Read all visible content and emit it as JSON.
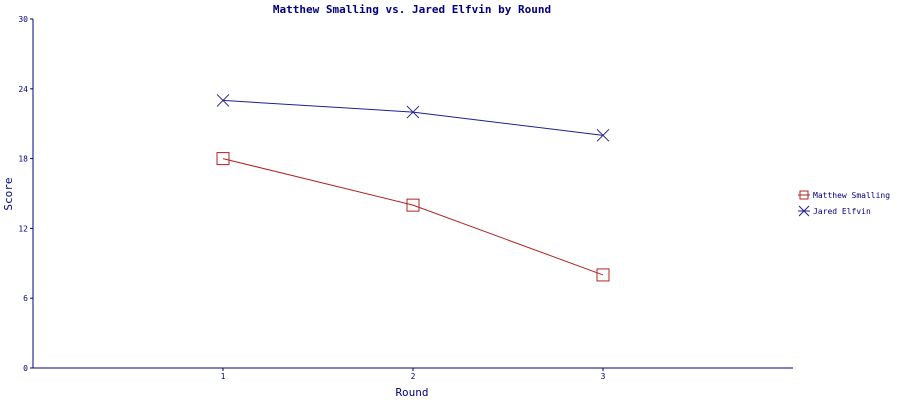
{
  "chart_data": {
    "type": "line",
    "title": "Matthew Smalling vs. Jared Elfvin by Round",
    "xlabel": "Round",
    "ylabel": "Score",
    "categories": [
      "1",
      "2",
      "3"
    ],
    "ylim": [
      0,
      30
    ],
    "yticks": [
      "0",
      "6",
      "12",
      "18",
      "24",
      "30"
    ],
    "grid": false,
    "legend_position": "right",
    "series": [
      {
        "name": "Matthew Smalling",
        "values": [
          18,
          14,
          8
        ],
        "color": "#b22222",
        "marker": "square"
      },
      {
        "name": "Jared Elfvin",
        "values": [
          23,
          22,
          20
        ],
        "color": "#1f1f8f",
        "marker": "x"
      }
    ]
  },
  "colors": {
    "axis": "#000080",
    "text": "#000080"
  }
}
